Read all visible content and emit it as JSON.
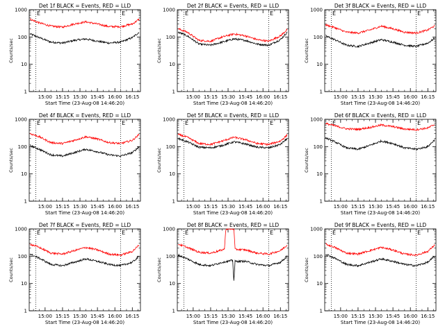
{
  "figure": {
    "x_tick_labels": [
      "15:00",
      "15:15",
      "15:30",
      "15:45",
      "16:00",
      "16:15"
    ],
    "x_label": "Start Time (23-Aug-08 14:46:20)",
    "y_label": "Counts/sec",
    "y_tick_labels": [
      "1",
      "10",
      "100",
      "1000"
    ],
    "marker_label": "E",
    "colors": {
      "events": "#000000",
      "lld": "#ff0000",
      "axes": "#000000",
      "background": "#ffffff"
    }
  },
  "chart_data": [
    {
      "type": "line",
      "title": "Det 1f BLACK = Events, RED = LLD",
      "y_scale": "log",
      "ylim": [
        1,
        1000
      ],
      "xlim": [
        "14:46:20",
        "16:22"
      ],
      "marker_times": [
        "14:52",
        "16:05"
      ],
      "series": [
        {
          "name": "Events",
          "color": "#000000",
          "x": [
            "14:47",
            "14:55",
            "15:05",
            "15:15",
            "15:25",
            "15:35",
            "15:45",
            "15:55",
            "16:05",
            "16:15",
            "16:21"
          ],
          "values": [
            130,
            95,
            65,
            60,
            75,
            85,
            70,
            60,
            65,
            95,
            150
          ]
        },
        {
          "name": "LLD",
          "color": "#ff0000",
          "x": [
            "14:47",
            "14:55",
            "15:05",
            "15:15",
            "15:25",
            "15:35",
            "15:45",
            "15:55",
            "16:05",
            "16:15",
            "16:21"
          ],
          "values": [
            450,
            330,
            250,
            230,
            300,
            360,
            300,
            240,
            240,
            300,
            450
          ]
        }
      ]
    },
    {
      "type": "line",
      "title": "Det 2f BLACK = Events, RED = LLD",
      "y_scale": "log",
      "ylim": [
        1,
        1000
      ],
      "xlim": [
        "14:46:20",
        "16:22"
      ],
      "marker_times": [
        "14:52",
        "16:05"
      ],
      "series": [
        {
          "name": "Events",
          "color": "#000000",
          "x": [
            "14:47",
            "14:55",
            "15:05",
            "15:15",
            "15:25",
            "15:35",
            "15:45",
            "15:55",
            "16:05",
            "16:15",
            "16:21"
          ],
          "values": [
            150,
            110,
            55,
            50,
            65,
            85,
            75,
            55,
            50,
            80,
            150
          ]
        },
        {
          "name": "LLD",
          "color": "#ff0000",
          "x": [
            "14:47",
            "14:55",
            "15:05",
            "15:15",
            "15:25",
            "15:35",
            "15:45",
            "15:55",
            "16:05",
            "16:15",
            "16:21"
          ],
          "values": [
            200,
            150,
            75,
            70,
            100,
            130,
            110,
            80,
            70,
            110,
            190
          ]
        }
      ]
    },
    {
      "type": "line",
      "title": "Det 3f BLACK = Events, RED = LLD",
      "y_scale": "log",
      "ylim": [
        1,
        1000
      ],
      "xlim": [
        "14:46:20",
        "16:22"
      ],
      "marker_times": [
        "14:52",
        "16:05"
      ],
      "series": [
        {
          "name": "Events",
          "color": "#000000",
          "x": [
            "14:47",
            "14:55",
            "15:05",
            "15:15",
            "15:25",
            "15:35",
            "15:45",
            "15:55",
            "16:05",
            "16:15",
            "16:21"
          ],
          "values": [
            110,
            80,
            50,
            45,
            60,
            80,
            65,
            50,
            45,
            60,
            90
          ]
        },
        {
          "name": "LLD",
          "color": "#ff0000",
          "x": [
            "14:47",
            "14:55",
            "15:05",
            "15:15",
            "15:25",
            "15:35",
            "15:45",
            "15:55",
            "16:05",
            "16:15",
            "16:21"
          ],
          "values": [
            280,
            220,
            150,
            140,
            180,
            250,
            200,
            150,
            140,
            180,
            260
          ]
        }
      ]
    },
    {
      "type": "line",
      "title": "Det 4f BLACK = Events, RED = LLD",
      "y_scale": "log",
      "ylim": [
        1,
        1000
      ],
      "xlim": [
        "14:46:20",
        "16:22"
      ],
      "marker_times": [
        "14:52",
        "16:05"
      ],
      "series": [
        {
          "name": "Events",
          "color": "#000000",
          "x": [
            "14:47",
            "14:55",
            "15:05",
            "15:15",
            "15:25",
            "15:35",
            "15:45",
            "15:55",
            "16:05",
            "16:15",
            "16:21"
          ],
          "values": [
            110,
            80,
            50,
            45,
            60,
            80,
            65,
            50,
            45,
            60,
            100
          ]
        },
        {
          "name": "LLD",
          "color": "#ff0000",
          "x": [
            "14:47",
            "14:55",
            "15:05",
            "15:15",
            "15:25",
            "15:35",
            "15:45",
            "15:55",
            "16:05",
            "16:15",
            "16:21"
          ],
          "values": [
            300,
            230,
            140,
            130,
            170,
            230,
            190,
            140,
            130,
            170,
            280
          ]
        }
      ]
    },
    {
      "type": "line",
      "title": "Det 5f BLACK = Events, RED = LLD",
      "y_scale": "log",
      "ylim": [
        1,
        1000
      ],
      "xlim": [
        "14:46:20",
        "16:22"
      ],
      "marker_times": [
        "14:52",
        "16:05"
      ],
      "series": [
        {
          "name": "Events",
          "color": "#000000",
          "x": [
            "14:47",
            "14:55",
            "15:05",
            "15:15",
            "15:25",
            "15:35",
            "15:45",
            "15:55",
            "16:05",
            "16:15",
            "16:21"
          ],
          "values": [
            200,
            150,
            95,
            90,
            110,
            150,
            125,
            95,
            90,
            120,
            200
          ]
        },
        {
          "name": "LLD",
          "color": "#ff0000",
          "x": [
            "14:47",
            "14:55",
            "15:05",
            "15:15",
            "15:25",
            "15:35",
            "15:45",
            "15:55",
            "16:05",
            "16:15",
            "16:21"
          ],
          "values": [
            280,
            220,
            130,
            120,
            160,
            220,
            180,
            130,
            120,
            160,
            270
          ]
        }
      ]
    },
    {
      "type": "line",
      "title": "Det 6f BLACK = Events, RED = LLD",
      "y_scale": "log",
      "ylim": [
        1,
        1000
      ],
      "xlim": [
        "14:46:20",
        "16:22"
      ],
      "marker_times": [
        "14:52",
        "16:05"
      ],
      "series": [
        {
          "name": "Events",
          "color": "#000000",
          "x": [
            "14:47",
            "14:55",
            "15:05",
            "15:15",
            "15:25",
            "15:35",
            "15:45",
            "15:55",
            "16:05",
            "16:15",
            "16:21"
          ],
          "values": [
            210,
            150,
            90,
            80,
            110,
            160,
            130,
            90,
            80,
            100,
            180
          ]
        },
        {
          "name": "LLD",
          "color": "#ff0000",
          "x": [
            "14:47",
            "14:55",
            "15:05",
            "15:15",
            "15:25",
            "15:35",
            "15:45",
            "15:55",
            "16:05",
            "16:15",
            "16:21"
          ],
          "values": [
            700,
            580,
            450,
            430,
            500,
            620,
            540,
            440,
            420,
            480,
            650
          ]
        }
      ]
    },
    {
      "type": "line",
      "title": "Det 7f BLACK = Events, RED = LLD",
      "y_scale": "log",
      "ylim": [
        1,
        1000
      ],
      "xlim": [
        "14:46:20",
        "16:22"
      ],
      "marker_times": [
        "14:52",
        "16:05"
      ],
      "series": [
        {
          "name": "Events",
          "color": "#000000",
          "x": [
            "14:47",
            "14:55",
            "15:05",
            "15:15",
            "15:25",
            "15:35",
            "15:45",
            "15:55",
            "16:05",
            "16:15",
            "16:21"
          ],
          "values": [
            120,
            85,
            50,
            45,
            60,
            80,
            65,
            50,
            45,
            60,
            100
          ]
        },
        {
          "name": "LLD",
          "color": "#ff0000",
          "x": [
            "14:47",
            "14:55",
            "15:05",
            "15:15",
            "15:25",
            "15:35",
            "15:45",
            "15:55",
            "16:05",
            "16:15",
            "16:21"
          ],
          "values": [
            280,
            210,
            130,
            120,
            160,
            210,
            170,
            120,
            110,
            150,
            260
          ]
        }
      ]
    },
    {
      "type": "line",
      "title": "Det 8f BLACK = Events, RED = LLD",
      "y_scale": "log",
      "ylim": [
        1,
        1000
      ],
      "xlim": [
        "14:46:20",
        "16:22"
      ],
      "marker_times": [
        "14:52",
        "16:05"
      ],
      "series": [
        {
          "name": "Events",
          "color": "#000000",
          "x": [
            "14:47",
            "14:55",
            "15:05",
            "15:15",
            "15:25",
            "15:34",
            "15:35",
            "15:36",
            "15:45",
            "15:55",
            "16:05",
            "16:15",
            "16:21"
          ],
          "values": [
            110,
            80,
            50,
            45,
            60,
            70,
            12,
            65,
            65,
            50,
            45,
            60,
            100
          ]
        },
        {
          "name": "LLD",
          "color": "#ff0000",
          "x": [
            "14:47",
            "14:55",
            "15:05",
            "15:15",
            "15:25",
            "15:27",
            "15:28",
            "15:35",
            "15:36",
            "15:45",
            "15:55",
            "16:05",
            "16:15",
            "16:21"
          ],
          "values": [
            280,
            210,
            140,
            130,
            170,
            190,
            1000,
            1000,
            180,
            170,
            130,
            120,
            160,
            260
          ]
        }
      ]
    },
    {
      "type": "line",
      "title": "Det 9f BLACK = Events, RED = LLD",
      "y_scale": "log",
      "ylim": [
        1,
        1000
      ],
      "xlim": [
        "14:46:20",
        "16:22"
      ],
      "marker_times": [
        "14:52",
        "16:05"
      ],
      "series": [
        {
          "name": "Events",
          "color": "#000000",
          "x": [
            "14:47",
            "14:55",
            "15:05",
            "15:15",
            "15:25",
            "15:35",
            "15:45",
            "15:55",
            "16:05",
            "16:15",
            "16:21"
          ],
          "values": [
            120,
            85,
            50,
            45,
            60,
            80,
            65,
            50,
            45,
            60,
            100
          ]
        },
        {
          "name": "LLD",
          "color": "#ff0000",
          "x": [
            "14:47",
            "14:55",
            "15:05",
            "15:15",
            "15:25",
            "15:35",
            "15:45",
            "15:55",
            "16:05",
            "16:15",
            "16:21"
          ],
          "values": [
            280,
            210,
            130,
            120,
            160,
            210,
            170,
            120,
            110,
            150,
            260
          ]
        }
      ]
    }
  ]
}
